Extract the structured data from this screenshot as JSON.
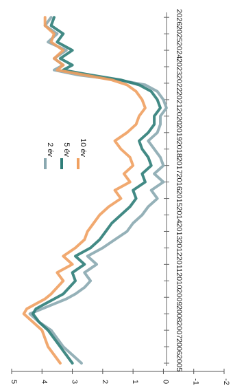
{
  "chart_data": {
    "type": "line",
    "title": "",
    "xlabel": "",
    "ylabel": "",
    "orientation": "rotated 90 degrees clockwise",
    "x_ticks": [
      "2005",
      "2006",
      "2007",
      "2008",
      "2009",
      "2010",
      "2011",
      "2012",
      "2013",
      "2014",
      "2015",
      "2016",
      "2017",
      "2018",
      "2019",
      "2020",
      "2021",
      "2022",
      "2023",
      "2024",
      "2025",
      "2026"
    ],
    "y_ticks": [
      "-2",
      "-1",
      "0",
      "1",
      "2",
      "3",
      "4",
      "5"
    ],
    "xlim": [
      2005,
      2026.3
    ],
    "ylim": [
      -2,
      5
    ],
    "grid": false,
    "legend_position": "inside, upper middle",
    "colors": {
      "2 év": "#8aa8b0",
      "5 év": "#2e7d78",
      "10 év": "#f0a060"
    },
    "series": [
      {
        "name": "2 év",
        "color": "#8aa8b0",
        "x": [
          2005.0,
          2005.5,
          2006.0,
          2006.5,
          2007.0,
          2007.5,
          2008.0,
          2008.3,
          2008.6,
          2008.9,
          2009.2,
          2009.6,
          2010.0,
          2010.5,
          2011.0,
          2011.5,
          2012.0,
          2012.5,
          2013.0,
          2013.5,
          2014.0,
          2014.5,
          2015.0,
          2015.5,
          2016.0,
          2016.5,
          2017.0,
          2017.5,
          2018.0,
          2018.5,
          2019.0,
          2019.5,
          2020.0,
          2020.5,
          2021.0,
          2021.5,
          2021.9,
          2022.2,
          2022.5,
          2022.8,
          2023.1,
          2023.5,
          2024.0,
          2024.5,
          2025.0,
          2025.5,
          2026.0
        ],
        "y": [
          2.7,
          3.0,
          3.3,
          3.5,
          3.7,
          4.1,
          4.4,
          4.0,
          3.6,
          3.2,
          2.9,
          2.6,
          2.4,
          2.6,
          2.2,
          2.5,
          2.0,
          1.6,
          1.2,
          1.0,
          0.7,
          0.5,
          0.2,
          0.4,
          0.0,
          0.3,
          0.0,
          0.1,
          0.3,
          0.5,
          0.2,
          0.1,
          0.1,
          -0.1,
          0.0,
          0.2,
          0.6,
          1.5,
          2.8,
          3.6,
          3.3,
          3.6,
          3.2,
          3.8,
          3.5,
          3.9,
          3.7
        ]
      },
      {
        "name": "5 év",
        "color": "#2e7d78",
        "x": [
          2005.0,
          2005.5,
          2006.0,
          2006.5,
          2007.0,
          2007.5,
          2008.0,
          2008.3,
          2008.6,
          2008.9,
          2009.2,
          2009.6,
          2010.0,
          2010.5,
          2011.0,
          2011.5,
          2012.0,
          2012.5,
          2013.0,
          2013.5,
          2014.0,
          2014.5,
          2015.0,
          2015.5,
          2016.0,
          2016.5,
          2017.0,
          2017.5,
          2018.0,
          2018.5,
          2019.0,
          2019.5,
          2020.0,
          2020.5,
          2021.0,
          2021.5,
          2021.9,
          2022.2,
          2022.5,
          2022.8,
          2023.1,
          2023.5,
          2024.0,
          2024.5,
          2025.0,
          2025.5,
          2026.0
        ],
        "y": [
          3.0,
          3.2,
          3.4,
          3.6,
          3.8,
          4.1,
          4.3,
          4.2,
          3.9,
          3.6,
          3.3,
          3.1,
          2.9,
          3.0,
          2.6,
          2.9,
          2.4,
          2.1,
          1.9,
          1.7,
          1.4,
          1.1,
          0.9,
          1.0,
          0.6,
          0.7,
          0.4,
          0.5,
          0.7,
          0.8,
          0.5,
          0.3,
          0.3,
          0.1,
          0.2,
          0.4,
          0.8,
          1.4,
          2.4,
          3.3,
          3.0,
          3.4,
          3.0,
          3.5,
          3.3,
          3.7,
          3.6
        ]
      },
      {
        "name": "10 év",
        "color": "#f0a060",
        "x": [
          2005.0,
          2005.5,
          2006.0,
          2006.5,
          2007.0,
          2007.5,
          2008.0,
          2008.3,
          2008.6,
          2008.9,
          2009.2,
          2009.6,
          2010.0,
          2010.5,
          2011.0,
          2011.5,
          2012.0,
          2012.5,
          2013.0,
          2013.5,
          2014.0,
          2014.5,
          2015.0,
          2015.5,
          2016.0,
          2016.5,
          2017.0,
          2017.5,
          2018.0,
          2018.5,
          2019.0,
          2019.5,
          2020.0,
          2020.5,
          2021.0,
          2021.5,
          2021.9,
          2022.2,
          2022.5,
          2022.8,
          2023.1,
          2023.5,
          2024.0,
          2024.5,
          2025.0,
          2025.5,
          2026.0
        ],
        "y": [
          3.4,
          3.6,
          3.8,
          3.9,
          4.0,
          4.3,
          4.6,
          4.5,
          4.2,
          3.9,
          3.7,
          3.5,
          3.3,
          3.5,
          3.0,
          3.3,
          2.9,
          2.6,
          2.5,
          2.3,
          2.1,
          1.8,
          1.4,
          1.6,
          1.1,
          1.3,
          1.0,
          1.1,
          1.4,
          1.6,
          1.2,
          0.9,
          0.8,
          0.6,
          0.7,
          0.9,
          1.2,
          1.7,
          2.6,
          3.5,
          3.3,
          3.6,
          3.3,
          3.7,
          3.6,
          3.9,
          3.9
        ]
      }
    ]
  }
}
